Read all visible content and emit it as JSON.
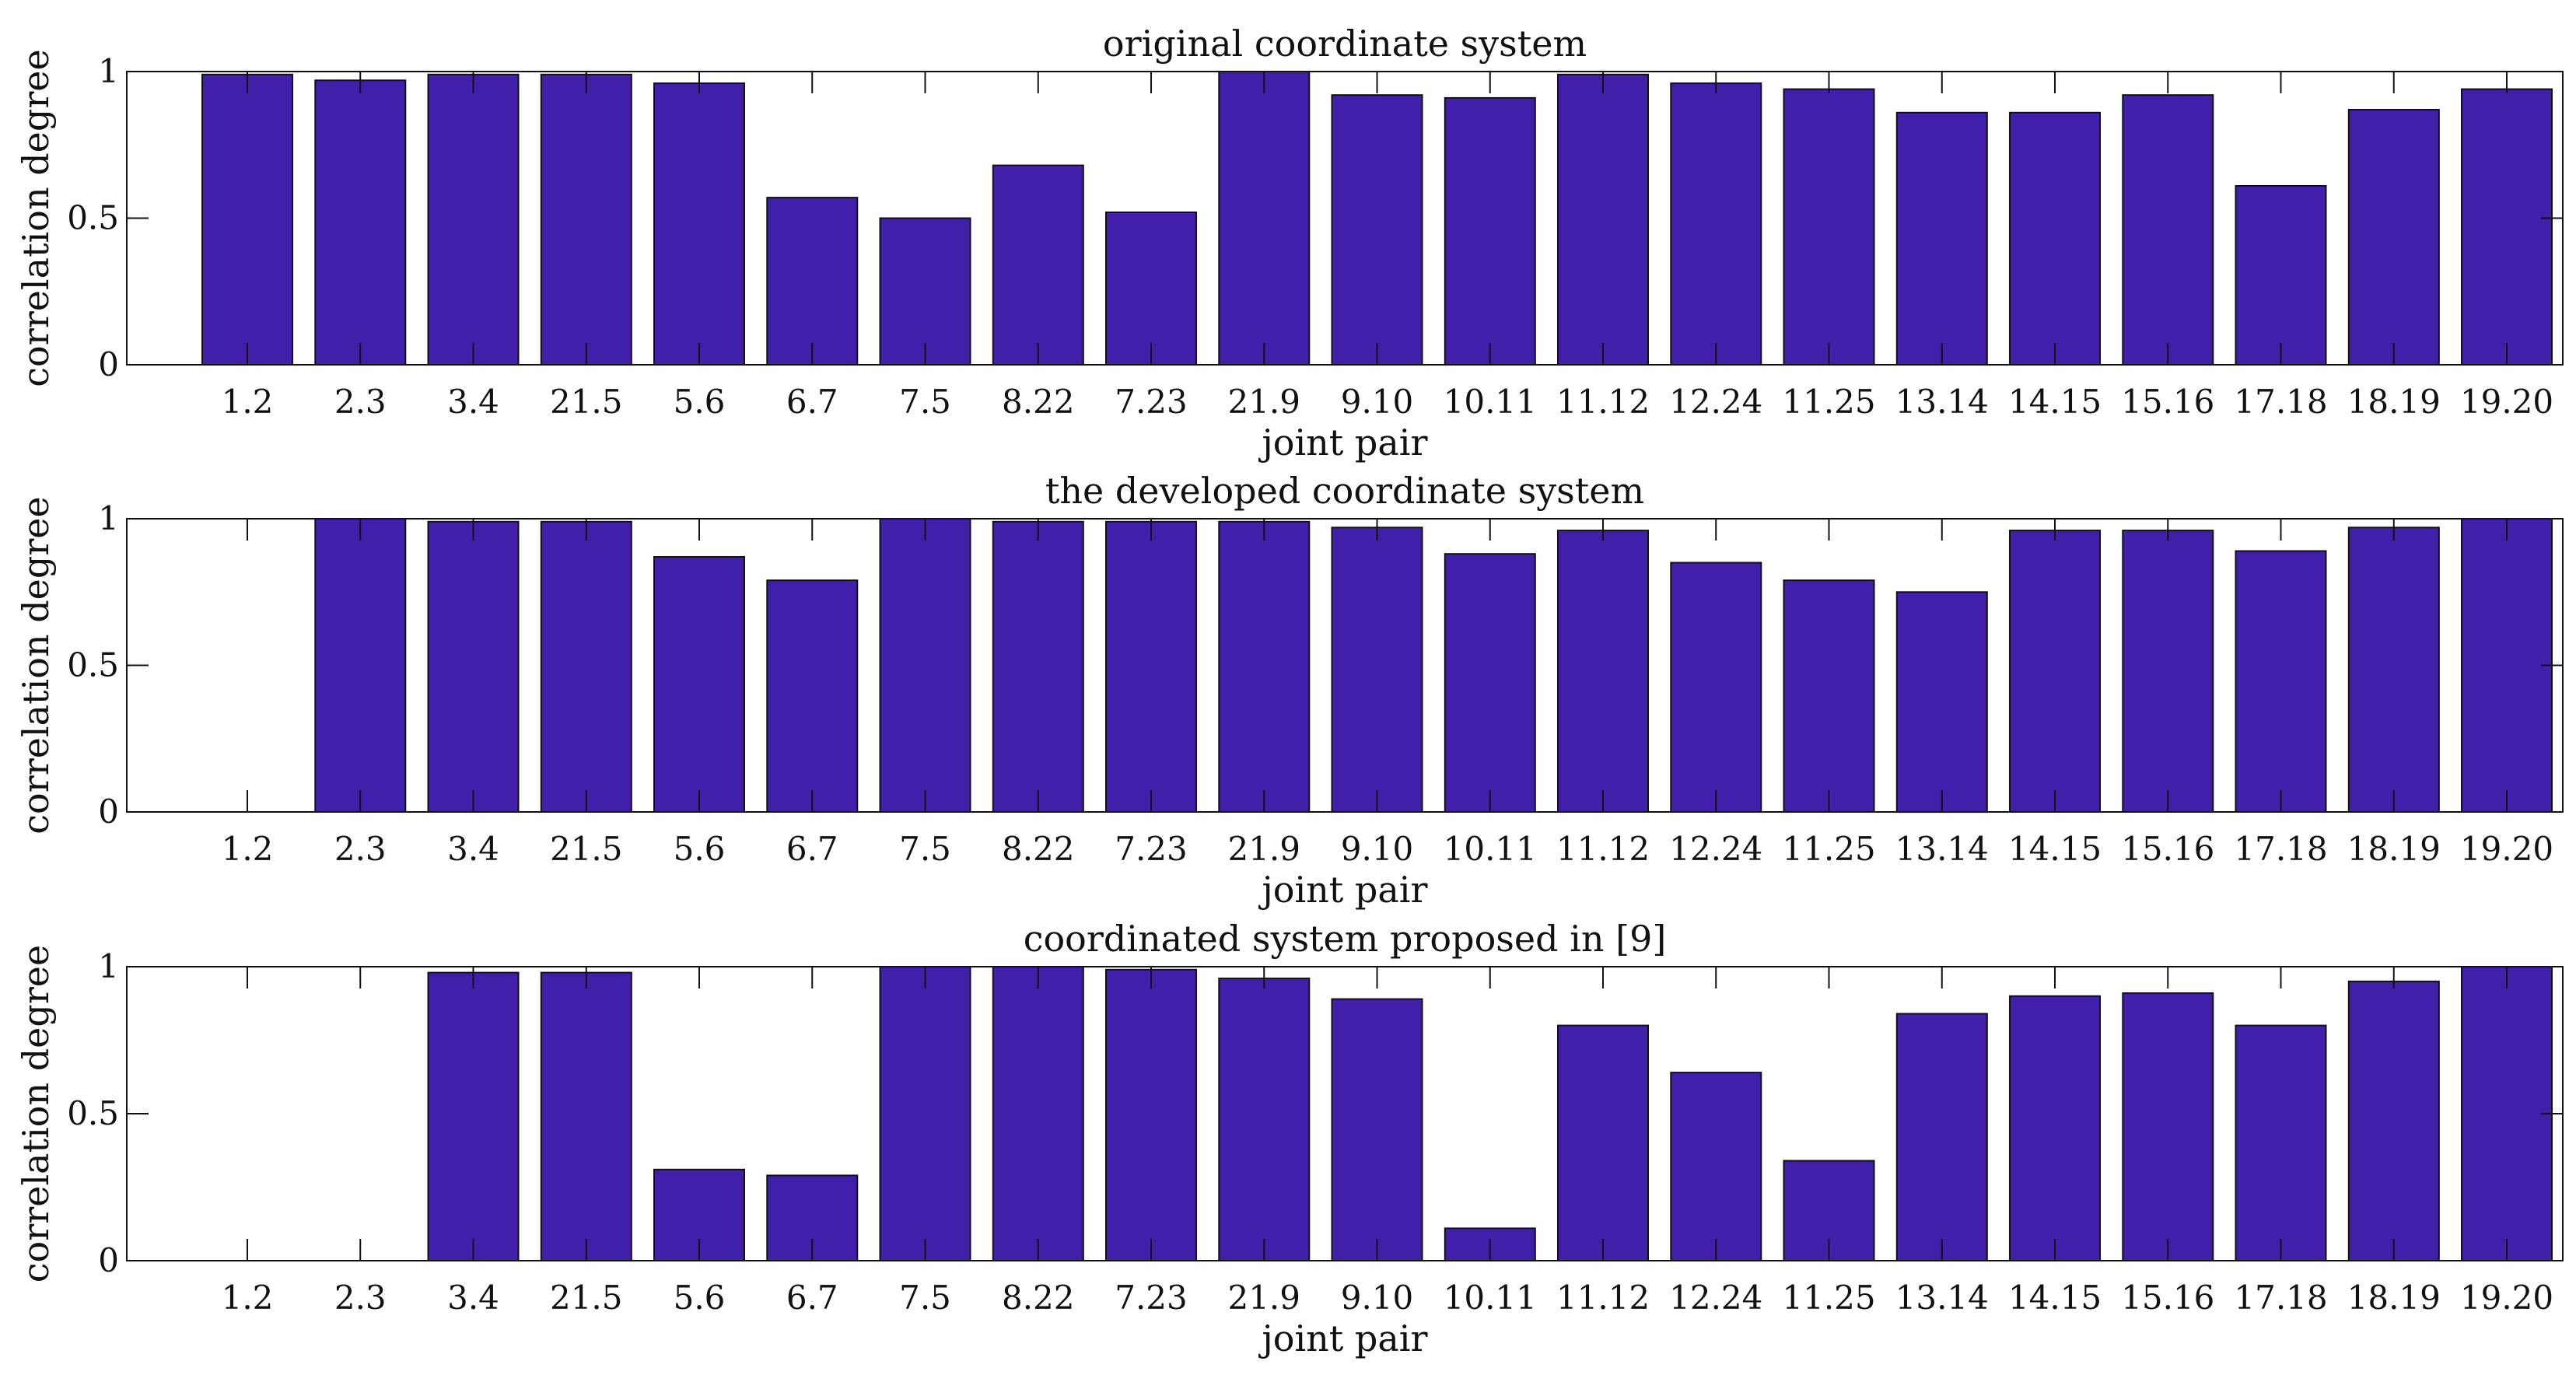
{
  "colors": {
    "bar": "#4020AA",
    "bar_edge": "#111111",
    "axis": "#111111",
    "background": "#ffffff"
  },
  "chart_data": [
    {
      "type": "bar",
      "title": "original coordinate system",
      "xlabel": "joint pair",
      "ylabel": "correlation degree",
      "ylim": [
        0,
        1
      ],
      "yticks": [
        0,
        0.5,
        1
      ],
      "ytick_labels": [
        "0",
        "0.5",
        "1"
      ],
      "grid": false,
      "categories": [
        "1.2",
        "2.3",
        "3.4",
        "21.5",
        "5.6",
        "6.7",
        "7.5",
        "8.22",
        "7.23",
        "21.9",
        "9.10",
        "10.11",
        "11.12",
        "12.24",
        "11.25",
        "13.14",
        "14.15",
        "15.16",
        "17.18",
        "18.19",
        "19.20"
      ],
      "values": [
        0.99,
        0.97,
        0.99,
        0.99,
        0.96,
        0.57,
        0.5,
        0.68,
        0.52,
        1.0,
        0.92,
        0.91,
        0.99,
        0.96,
        0.94,
        0.86,
        0.86,
        0.92,
        0.61,
        0.87,
        0.94
      ]
    },
    {
      "type": "bar",
      "title": "the developed coordinate system",
      "xlabel": "joint pair",
      "ylabel": "correlation degree",
      "ylim": [
        0,
        1
      ],
      "yticks": [
        0,
        0.5,
        1
      ],
      "ytick_labels": [
        "0",
        "0.5",
        "1"
      ],
      "grid": false,
      "categories": [
        "1.2",
        "2.3",
        "3.4",
        "21.5",
        "5.6",
        "6.7",
        "7.5",
        "8.22",
        "7.23",
        "21.9",
        "9.10",
        "10.11",
        "11.12",
        "12.24",
        "11.25",
        "13.14",
        "14.15",
        "15.16",
        "17.18",
        "18.19",
        "19.20"
      ],
      "values": [
        0,
        1.0,
        0.99,
        0.99,
        0.87,
        0.79,
        1.0,
        0.99,
        0.99,
        0.99,
        0.97,
        0.88,
        0.96,
        0.85,
        0.79,
        0.75,
        0.96,
        0.96,
        0.89,
        0.97,
        1.0
      ]
    },
    {
      "type": "bar",
      "title": "coordinated system proposed in [9]",
      "xlabel": "joint pair",
      "ylabel": "correlation degree",
      "ylim": [
        0,
        1
      ],
      "yticks": [
        0,
        0.5,
        1
      ],
      "ytick_labels": [
        "0",
        "0.5",
        "1"
      ],
      "grid": false,
      "categories": [
        "1.2",
        "2.3",
        "3.4",
        "21.5",
        "5.6",
        "6.7",
        "7.5",
        "8.22",
        "7.23",
        "21.9",
        "9.10",
        "10.11",
        "11.12",
        "12.24",
        "11.25",
        "13.14",
        "14.15",
        "15.16",
        "17.18",
        "18.19",
        "19.20"
      ],
      "values": [
        0,
        0,
        0.98,
        0.98,
        0.31,
        0.29,
        1.0,
        1.0,
        0.99,
        0.96,
        0.89,
        0.11,
        0.8,
        0.64,
        0.34,
        0.84,
        0.9,
        0.91,
        0.8,
        0.95,
        1.0
      ]
    }
  ]
}
